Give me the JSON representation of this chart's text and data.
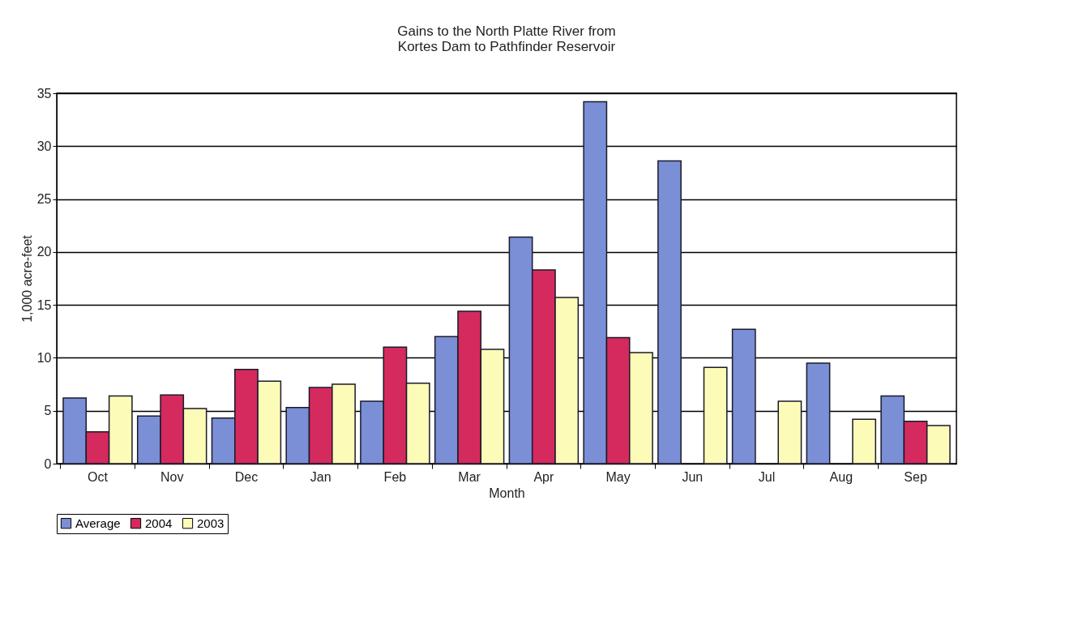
{
  "chart_data": {
    "type": "bar",
    "title": [
      "Gains to the North Platte River from",
      "Kortes Dam to Pathfinder Reservoir"
    ],
    "xlabel": "Month",
    "ylabel": "1,000 acre-feet",
    "categories": [
      "Oct",
      "Nov",
      "Dec",
      "Jan",
      "Feb",
      "Mar",
      "Apr",
      "May",
      "Jun",
      "Jul",
      "Aug",
      "Sep"
    ],
    "series": [
      {
        "name": "Average",
        "color": "#7b8fd6",
        "values": [
          6.2,
          4.5,
          4.3,
          5.3,
          5.9,
          12.0,
          21.4,
          34.2,
          28.6,
          12.7,
          9.5,
          6.4
        ]
      },
      {
        "name": "2004",
        "color": "#d42a5e",
        "values": [
          3.0,
          6.5,
          8.9,
          7.2,
          11.0,
          14.4,
          18.3,
          11.9,
          null,
          null,
          null,
          4.0
        ]
      },
      {
        "name": "2003",
        "color": "#fdfbb8",
        "values": [
          6.4,
          5.2,
          7.8,
          7.5,
          7.6,
          10.8,
          15.7,
          10.5,
          9.1,
          5.9,
          4.2,
          3.6
        ]
      }
    ],
    "ylim": [
      0,
      35
    ],
    "yticks": [
      0,
      5,
      10,
      15,
      20,
      25,
      30,
      35
    ],
    "grid": "y",
    "legend": "bottom"
  }
}
